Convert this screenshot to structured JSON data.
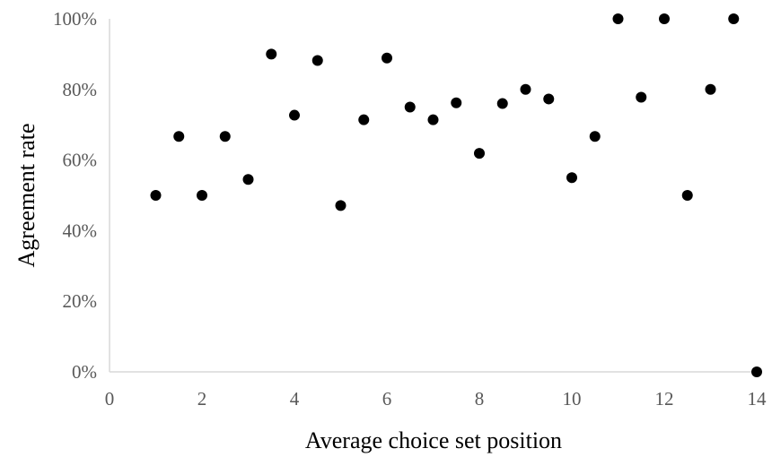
{
  "chart_data": {
    "type": "scatter",
    "title": "",
    "xlabel": "Average choice set position",
    "ylabel": "Agreement rate",
    "xlim": [
      0,
      14
    ],
    "ylim": [
      0,
      1
    ],
    "x_ticks": [
      "0",
      "2",
      "4",
      "6",
      "8",
      "10",
      "12",
      "14"
    ],
    "y_ticks": [
      "0%",
      "20%",
      "40%",
      "60%",
      "80%",
      "100%"
    ],
    "grid": false,
    "legend": "none",
    "marker_color": "#000000",
    "axis_color": "#d9d9d9",
    "series": [
      {
        "x": [
          1,
          1.5,
          2,
          2.5,
          3,
          3.5,
          4,
          4.5,
          5,
          5.5,
          6,
          6.5,
          7,
          7.5,
          8,
          8.5,
          9,
          9.5,
          10,
          10.5,
          11,
          11.5,
          12,
          12.5,
          13,
          13.5,
          14
        ],
        "y": [
          0.5,
          0.667,
          0.5,
          0.667,
          0.545,
          0.9,
          0.727,
          0.882,
          0.471,
          0.714,
          0.889,
          0.75,
          0.714,
          0.762,
          0.619,
          0.76,
          0.8,
          0.773,
          0.55,
          0.667,
          1.0,
          0.778,
          1.0,
          0.5,
          0.8,
          1.0,
          0.0
        ]
      }
    ]
  }
}
